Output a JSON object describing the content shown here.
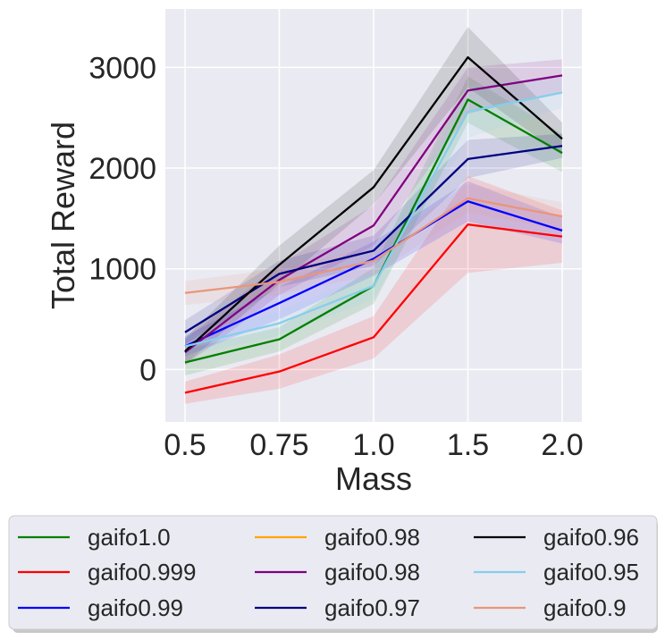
{
  "chart_data": {
    "type": "line",
    "xlabel": "Mass",
    "ylabel": "Total Reward",
    "x_tick_labels": [
      "0.5",
      "0.75",
      "1.0",
      "1.5",
      "2.0"
    ],
    "x": [
      0.5,
      0.75,
      1.0,
      1.5,
      2.0
    ],
    "y_ticks": [
      0,
      1000,
      2000,
      3000
    ],
    "y_tick_labels": [
      "0",
      "1000",
      "2000",
      "3000"
    ],
    "ylim": [
      -520,
      3580
    ],
    "grid": true,
    "legend_placement": "below",
    "series": [
      {
        "name": "gaifo1.0",
        "color": "#008000",
        "values": [
          70,
          300,
          830,
          2680,
          2150
        ],
        "lower": [
          -60,
          180,
          650,
          2450,
          1960
        ],
        "upper": [
          200,
          420,
          1010,
          2910,
          2340
        ]
      },
      {
        "name": "gaifo0.999",
        "color": "#ff0000",
        "values": [
          -230,
          -20,
          320,
          1440,
          1320
        ],
        "lower": [
          -340,
          -190,
          110,
          960,
          1060
        ],
        "upper": [
          -120,
          150,
          530,
          1920,
          1580
        ]
      },
      {
        "name": "gaifo0.99",
        "color": "#0000ff",
        "values": [
          230,
          660,
          1100,
          1670,
          1380
        ],
        "lower": [
          130,
          500,
          930,
          1470,
          1250
        ],
        "upper": [
          330,
          820,
          1270,
          1870,
          1510
        ]
      },
      {
        "name": "gaifo0.98",
        "color": "#ffa500",
        "values": [
          null,
          null,
          null,
          null,
          null
        ],
        "lower": [],
        "upper": []
      },
      {
        "name": "gaifo0.98",
        "color": "#800080",
        "values": [
          170,
          890,
          1430,
          2770,
          2920
        ],
        "lower": [
          40,
          740,
          1230,
          2540,
          2760
        ],
        "upper": [
          300,
          1040,
          1630,
          3000,
          3080
        ]
      },
      {
        "name": "gaifo0.97",
        "color": "#000080",
        "values": [
          370,
          950,
          1180,
          2090,
          2220
        ],
        "lower": [
          250,
          820,
          1030,
          1900,
          2100
        ],
        "upper": [
          490,
          1080,
          1330,
          2280,
          2340
        ]
      },
      {
        "name": "gaifo0.96",
        "color": "#000000",
        "values": [
          180,
          1040,
          1810,
          3100,
          2290
        ],
        "lower": [
          50,
          850,
          1640,
          2800,
          2130
        ],
        "upper": [
          310,
          1230,
          1980,
          3400,
          2450
        ]
      },
      {
        "name": "gaifo0.95",
        "color": "#87ceeb",
        "values": [
          230,
          460,
          830,
          2560,
          2750
        ],
        "lower": [
          130,
          340,
          700,
          2300,
          2600
        ],
        "upper": [
          330,
          580,
          960,
          2820,
          2900
        ]
      },
      {
        "name": "gaifo0.9",
        "color": "#e9967a",
        "values": [
          760,
          870,
          1080,
          1700,
          1520
        ],
        "lower": [
          640,
          740,
          940,
          1560,
          1380
        ],
        "upper": [
          880,
          1000,
          1220,
          1840,
          1660
        ]
      }
    ]
  }
}
